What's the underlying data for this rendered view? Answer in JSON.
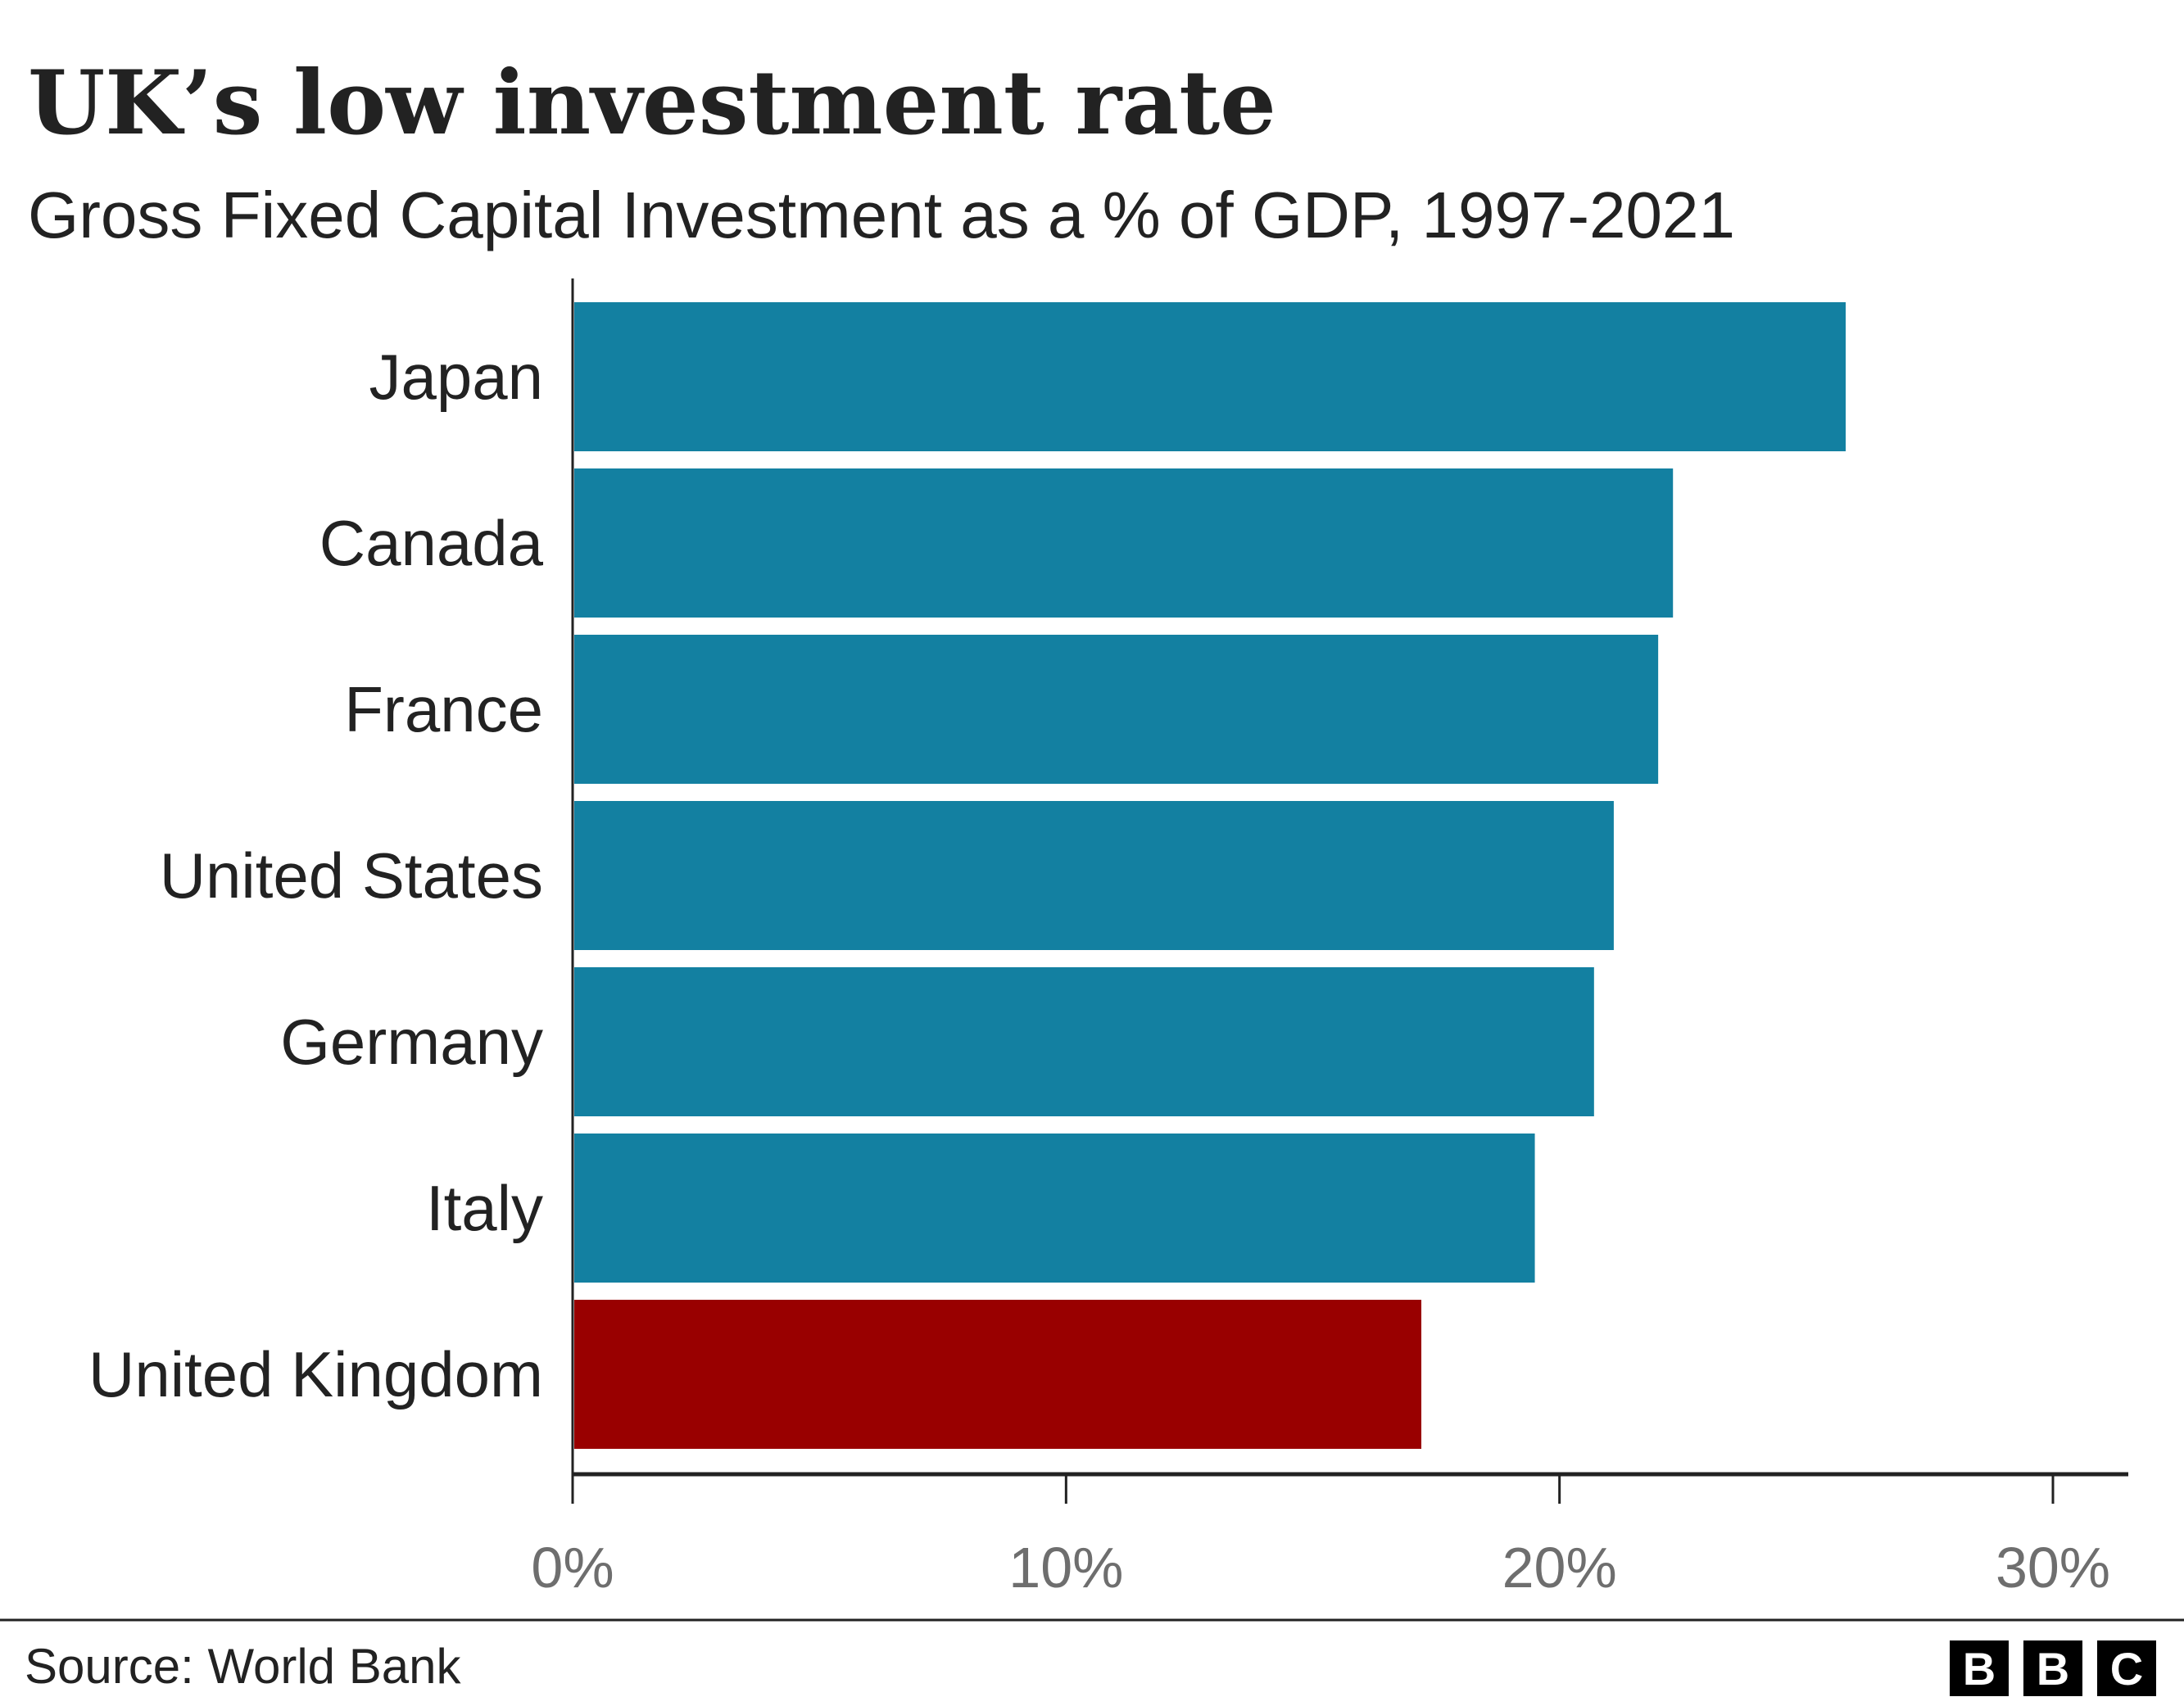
{
  "title": "UK’s low investment rate",
  "subtitle": "Gross Fixed Capital Investment as a % of GDP, 1997-2021",
  "source": "Source: World Bank",
  "logo": "BBC",
  "colors": {
    "default": "#1380a1",
    "highlight": "#990000",
    "text": "#222222",
    "tick": "#6e6e6e"
  },
  "chart_data": {
    "type": "bar",
    "orientation": "horizontal",
    "title": "UK’s low investment rate",
    "subtitle": "Gross Fixed Capital Investment as a % of GDP, 1997-2021",
    "categories": [
      "Japan",
      "Canada",
      "France",
      "United States",
      "Germany",
      "Italy",
      "United Kingdom"
    ],
    "values": [
      25.8,
      22.3,
      22.0,
      21.1,
      20.7,
      19.5,
      17.2
    ],
    "highlight": "United Kingdom",
    "xlim": [
      0,
      30
    ],
    "xticks": [
      0,
      10,
      20,
      30
    ],
    "xtick_labels": [
      "0%",
      "10%",
      "20%",
      "30%"
    ],
    "grid": false,
    "legend": "none"
  }
}
